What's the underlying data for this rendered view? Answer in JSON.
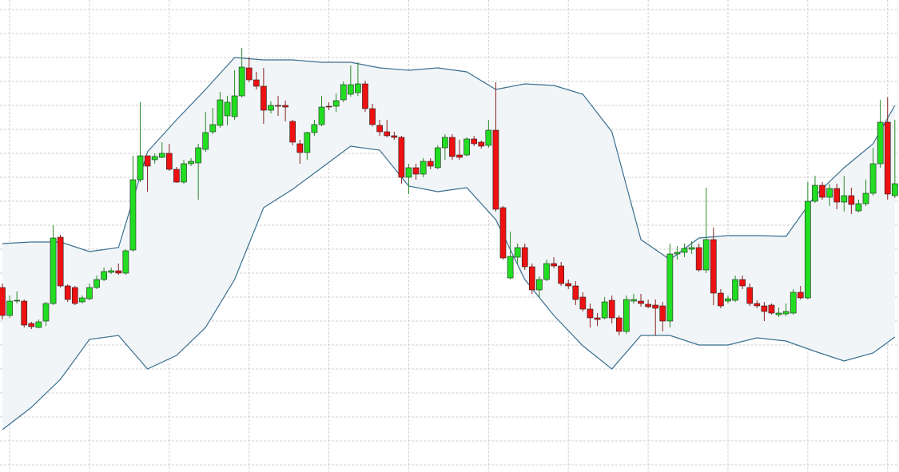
{
  "chart_data": {
    "type": "candlestick",
    "open": [
      231,
      196,
      214,
      214,
      186,
      181,
      189,
      211,
      294,
      233,
      231,
      213,
      217,
      231,
      241,
      250,
      252,
      249,
      278,
      366,
      396,
      391,
      394,
      399,
      379,
      363,
      386,
      387,
      404,
      426,
      434,
      446,
      445,
      471,
      506,
      491,
      483,
      453,
      459,
      459,
      439,
      411,
      400,
      425,
      435,
      458,
      458,
      466,
      473,
      475,
      486,
      455,
      434,
      426,
      421,
      419,
      369,
      381,
      373,
      389,
      381,
      406,
      419,
      397,
      397,
      417,
      413,
      409,
      428,
      331,
      243,
      269,
      281,
      257,
      228,
      241,
      261,
      258,
      236,
      233,
      219,
      204,
      193,
      193,
      215,
      193,
      176,
      214,
      214,
      210,
      209,
      208,
      189,
      273,
      275,
      279,
      281,
      253,
      291,
      224,
      214,
      215,
      241,
      231,
      211,
      208,
      209,
      197,
      198,
      199,
      225,
      218,
      339,
      359,
      344,
      355,
      338,
      346,
      327,
      336,
      349,
      386,
      438,
      346
    ],
    "high": [
      236,
      221,
      226,
      216,
      188,
      191,
      213,
      309,
      297,
      235,
      233,
      221,
      236,
      246,
      256,
      256,
      261,
      279,
      396,
      463,
      396,
      399,
      413,
      411,
      382,
      391,
      393,
      411,
      451,
      456,
      476,
      471,
      503,
      531,
      519,
      501,
      506,
      464,
      471,
      465,
      441,
      416,
      426,
      441,
      471,
      463,
      474,
      489,
      509,
      513,
      490,
      461,
      441,
      441,
      426,
      421,
      386,
      386,
      393,
      393,
      409,
      423,
      423,
      416,
      419,
      421,
      415,
      441,
      488,
      333,
      301,
      286,
      286,
      261,
      245,
      266,
      269,
      263,
      241,
      239,
      225,
      211,
      199,
      219,
      221,
      196,
      221,
      223,
      223,
      216,
      216,
      213,
      286,
      283,
      286,
      289,
      286,
      356,
      306,
      229,
      221,
      246,
      246,
      236,
      215,
      213,
      211,
      206,
      211,
      229,
      233,
      363,
      371,
      363,
      361,
      361,
      371,
      356,
      341,
      366,
      406,
      466,
      469,
      441
    ],
    "low": [
      191,
      193,
      211,
      181,
      179,
      180,
      183,
      209,
      231,
      213,
      209,
      211,
      215,
      229,
      239,
      248,
      247,
      247,
      276,
      363,
      351,
      386,
      393,
      377,
      362,
      361,
      383,
      341,
      401,
      423,
      431,
      434,
      441,
      469,
      488,
      479,
      436,
      449,
      446,
      439,
      409,
      386,
      391,
      421,
      433,
      453,
      451,
      463,
      470,
      471,
      451,
      433,
      421,
      419,
      416,
      361,
      348,
      366,
      369,
      379,
      379,
      391,
      391,
      391,
      395,
      408,
      405,
      406,
      326,
      266,
      241,
      261,
      253,
      223,
      219,
      239,
      255,
      233,
      229,
      209,
      201,
      181,
      183,
      191,
      186,
      171,
      173,
      211,
      207,
      205,
      171,
      176,
      181,
      266,
      269,
      273,
      251,
      249,
      209,
      205,
      211,
      213,
      229,
      208,
      205,
      189,
      197,
      194,
      195,
      197,
      216,
      216,
      337,
      341,
      333,
      329,
      326,
      323,
      325,
      333,
      346,
      381,
      341,
      343
    ],
    "close": [
      196,
      214,
      215,
      184,
      182,
      188,
      211,
      293,
      233,
      216,
      211,
      218,
      231,
      241,
      251,
      252,
      249,
      277,
      366,
      396,
      383,
      395,
      399,
      379,
      363,
      386,
      389,
      406,
      425,
      435,
      466,
      463,
      471,
      507,
      491,
      483,
      453,
      459,
      458,
      457,
      413,
      400,
      425,
      435,
      457,
      457,
      465,
      485,
      485,
      486,
      455,
      435,
      426,
      421,
      419,
      369,
      381,
      373,
      389,
      383,
      406,
      419,
      395,
      394,
      417,
      411,
      408,
      428,
      329,
      268,
      270,
      281,
      257,
      228,
      241,
      261,
      258,
      236,
      233,
      216,
      204,
      193,
      191,
      213,
      193,
      176,
      216,
      216,
      211,
      207,
      205,
      189,
      273,
      275,
      280,
      281,
      253,
      291,
      224,
      208,
      217,
      241,
      233,
      211,
      208,
      201,
      199,
      199,
      201,
      225,
      218,
      339,
      359,
      344,
      355,
      338,
      346,
      335,
      336,
      349,
      386,
      438,
      348,
      361
    ],
    "up_color": "#22dd22",
    "down_color": "#ee1111",
    "outline_color": "#222222",
    "band": {
      "x": [
        0,
        4,
        8,
        12,
        16,
        20,
        24,
        28,
        32,
        36,
        40,
        44,
        48,
        52,
        56,
        60,
        64,
        68,
        72,
        76,
        80,
        84,
        88,
        92,
        96,
        100,
        104,
        108,
        112,
        116,
        120,
        123
      ],
      "upper": [
        286,
        288,
        288,
        276,
        281,
        401,
        441,
        479,
        519,
        516,
        516,
        513,
        513,
        506,
        503,
        506,
        501,
        479,
        486,
        484,
        473,
        426,
        291,
        266,
        293,
        296,
        296,
        295,
        346,
        381,
        411,
        459
      ],
      "lower": [
        53,
        81,
        116,
        166,
        171,
        129,
        146,
        181,
        241,
        331,
        354,
        381,
        408,
        403,
        358,
        351,
        356,
        316,
        241,
        196,
        158,
        129,
        171,
        171,
        159,
        159,
        168,
        164,
        151,
        139,
        149,
        169
      ],
      "color": "#3a6f8f",
      "fill": "#f1f5f7"
    },
    "xlim": [
      -0.33,
      123.57
    ],
    "ylim": [
      0,
      591
    ],
    "xticks": [
      1,
      12,
      23,
      34,
      45,
      56,
      67,
      78,
      89,
      100,
      111,
      122
    ],
    "yticks": [
      9,
      39,
      69,
      99,
      129,
      159,
      189,
      219,
      249,
      279,
      309,
      339,
      369,
      399,
      429,
      459,
      489,
      519,
      549,
      579
    ],
    "grid": true
  }
}
